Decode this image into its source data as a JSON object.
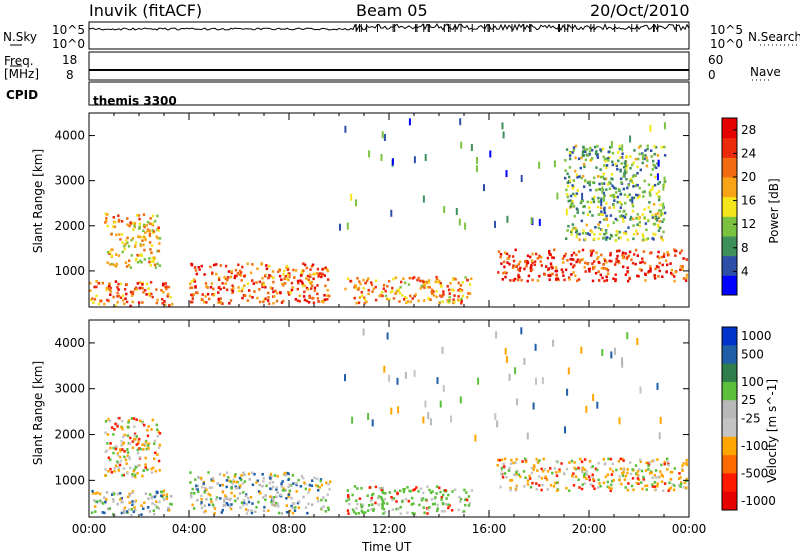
{
  "header": {
    "station": "Inuvik (fitACF)",
    "beam": "Beam 05",
    "date": "20/Oct/2010"
  },
  "panels": {
    "nsky": {
      "left_label": "N.Sky",
      "left_ticks": [
        "10^5",
        "10^0"
      ],
      "right_label": "N.Search",
      "right_ticks": [
        "10^5",
        "10^0"
      ]
    },
    "freq": {
      "left_label_1": "Freq.",
      "left_label_2": "[MHz]",
      "left_ticks": [
        "18",
        "8"
      ],
      "right_label": "Nave",
      "right_ticks": [
        "60",
        "0"
      ]
    },
    "cpid": {
      "label": "CPID",
      "value": "themis 3300"
    }
  },
  "colors": {
    "power_scale": [
      "#0000ff",
      "#2e4fa8",
      "#3f8f5a",
      "#7cc241",
      "#f4e61a",
      "#f7a416",
      "#f26b10",
      "#ee2a0c",
      "#e60000"
    ],
    "velocity_scale": [
      "#0033cc",
      "#1f5fa8",
      "#2f7d4b",
      "#5cbf3b",
      "#b8b8b8",
      "#c4c4c4",
      "#ffa500",
      "#ff6a00",
      "#ff1a00",
      "#e60000"
    ]
  },
  "chart_data": [
    {
      "type": "heatmap",
      "name": "power",
      "ylabel": "Slant Range [km]",
      "yticks": [
        "1000",
        "2000",
        "3000",
        "4000"
      ],
      "ylim": [
        200,
        4500
      ],
      "xlim": [
        "00:00",
        "24:00"
      ],
      "colorbar_label": "Power [dB]",
      "colorbar_ticks": [
        "4",
        "8",
        "12",
        "16",
        "20",
        "24",
        "28"
      ],
      "colorbar_range": [
        0,
        30
      ],
      "regions": [
        {
          "t0": 0.0,
          "t1": 3.3,
          "r0": 250,
          "r1": 800,
          "value": 22
        },
        {
          "t0": 0.6,
          "t1": 2.8,
          "r0": 1100,
          "r1": 2300,
          "value": 18
        },
        {
          "t0": 4.0,
          "t1": 9.6,
          "r0": 300,
          "r1": 1200,
          "value": 24
        },
        {
          "t0": 10.2,
          "t1": 15.3,
          "r0": 300,
          "r1": 900,
          "value": 20
        },
        {
          "t0": 16.3,
          "t1": 23.9,
          "r0": 800,
          "r1": 1500,
          "value": 26
        },
        {
          "t0": 19.0,
          "t1": 23.0,
          "r0": 1700,
          "r1": 3800,
          "value": 10
        }
      ]
    },
    {
      "type": "heatmap",
      "name": "velocity",
      "ylabel": "Slant Range [km]",
      "yticks": [
        "1000",
        "2000",
        "3000",
        "4000"
      ],
      "ylim": [
        200,
        4500
      ],
      "xlim": [
        "00:00",
        "24:00"
      ],
      "xlabel": "Time UT",
      "xticks": [
        "00:00",
        "04:00",
        "08:00",
        "12:00",
        "16:00",
        "20:00",
        "00:00"
      ],
      "colorbar_label": "Velocity [m s^-1]",
      "colorbar_ticks": [
        "1000",
        "500",
        "100",
        "25",
        "-25",
        "-100",
        "-500",
        "-1000"
      ],
      "regions": [
        {
          "t0": 0.6,
          "t1": 2.8,
          "r0": 1100,
          "r1": 2400,
          "value": -100
        },
        {
          "t0": 0.0,
          "t1": 3.3,
          "r0": 250,
          "r1": 800,
          "value": 0
        },
        {
          "t0": 4.0,
          "t1": 9.6,
          "r0": 300,
          "r1": 1200,
          "value": 0
        },
        {
          "t0": 10.2,
          "t1": 15.3,
          "r0": 300,
          "r1": 900,
          "value": 100
        },
        {
          "t0": 16.3,
          "t1": 23.9,
          "r0": 800,
          "r1": 1500,
          "value": -100
        }
      ]
    }
  ]
}
